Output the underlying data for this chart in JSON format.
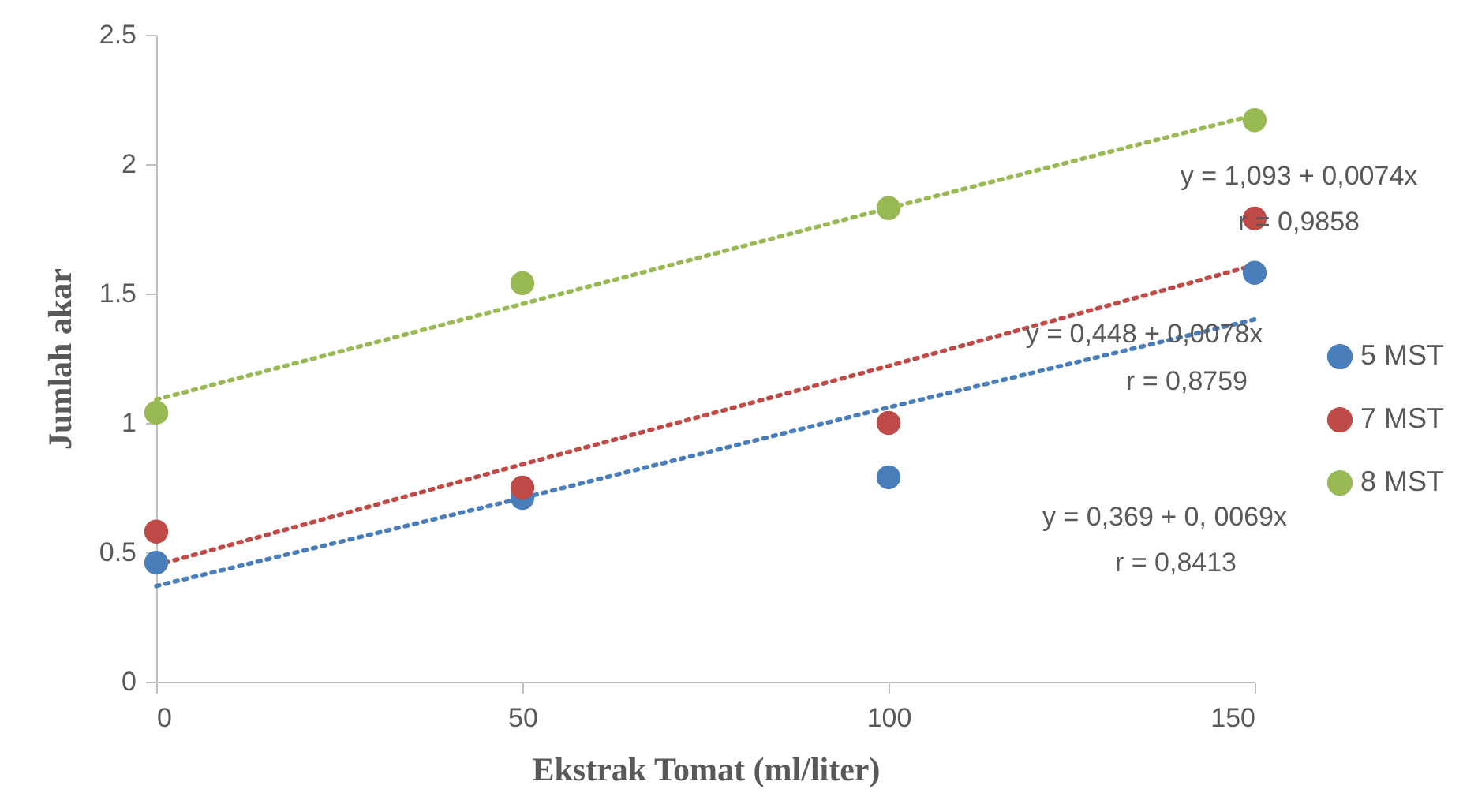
{
  "chart_data": {
    "type": "scatter",
    "xlabel": "Ekstrak Tomat (ml/liter)",
    "ylabel": "Jumlah akar",
    "x": [
      0,
      50,
      100,
      150
    ],
    "xlim": [
      0,
      150
    ],
    "xticks": [
      0,
      50,
      100,
      150
    ],
    "ylim": [
      0,
      2.5
    ],
    "yticks": [
      0,
      0.5,
      1,
      1.5,
      2,
      2.5
    ],
    "grid": false,
    "legend": "right",
    "marker": "circle",
    "series": [
      {
        "name": "5 MST",
        "color": "#4a7ebb",
        "values": [
          0.46,
          0.71,
          0.79,
          1.58
        ]
      },
      {
        "name": "7 MST",
        "color": "#be4b48",
        "values": [
          0.58,
          0.75,
          1.0,
          1.79
        ]
      },
      {
        "name": "8 MST",
        "color": "#98b954",
        "values": [
          1.04,
          1.54,
          1.83,
          2.17
        ]
      },
      {
        "type": "line",
        "color": "#98b954",
        "line_style": "dotted",
        "marker": "none",
        "values": [
          1.09,
          1.46,
          1.83,
          2.19
        ]
      },
      {
        "type": "line",
        "color": "#be4b48",
        "line_style": "dotted",
        "marker": "none",
        "values": [
          0.45,
          0.84,
          1.22,
          1.61
        ]
      },
      {
        "type": "line",
        "color": "#4a7ebb",
        "line_style": "dotted",
        "marker": "none",
        "values": [
          0.37,
          0.71,
          1.06,
          1.4
        ]
      }
    ],
    "annotations": [
      "y = 1,093 + 0,0074x",
      "r = 0,9858",
      "y = 0,448 + 0,0078x",
      "r = 0,8759",
      "y = 0,369 + 0, 0069x",
      "r = 0,8413"
    ]
  }
}
